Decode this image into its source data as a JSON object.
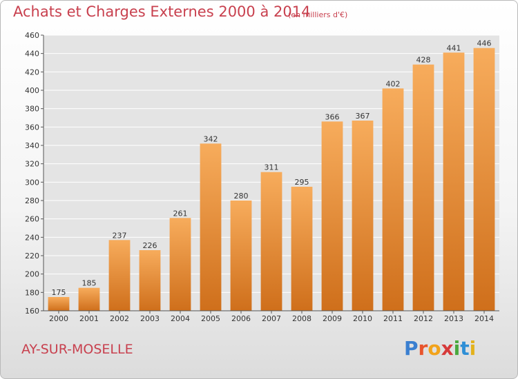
{
  "title": "Achats et Charges Externes 2000 à 2014",
  "subtitle": "(en milliers d'€)",
  "commune": "AY-SUR-MOSELLE",
  "logo": {
    "letters": [
      "P",
      "r",
      "o",
      "x",
      "i",
      "t",
      "i"
    ]
  },
  "colors": {
    "bar_light": "#f7ac5c",
    "bar_dark": "#cf6f1b",
    "grid": "#ffffff",
    "title": "#c8404e",
    "plot_background": "#e4e4e4"
  },
  "chart_data": {
    "type": "bar",
    "title": "Achats et Charges Externes 2000 à 2014",
    "subtitle": "(en milliers d'€)",
    "xlabel": "",
    "ylabel": "",
    "categories": [
      "2000",
      "2001",
      "2002",
      "2003",
      "2004",
      "2005",
      "2006",
      "2007",
      "2008",
      "2009",
      "2010",
      "2011",
      "2012",
      "2013",
      "2014"
    ],
    "values": [
      175,
      185,
      237,
      226,
      261,
      342,
      280,
      311,
      295,
      366,
      367,
      402,
      428,
      441,
      446
    ],
    "data_labels": [
      "175",
      "185",
      "237",
      "226",
      "261",
      "342",
      "280",
      "311",
      "295",
      "366",
      "367",
      "402",
      "428",
      "441",
      "446"
    ],
    "ylim": [
      160,
      460
    ],
    "yticks": [
      160,
      180,
      200,
      220,
      240,
      260,
      280,
      300,
      320,
      340,
      360,
      380,
      400,
      420,
      440,
      460
    ],
    "ytick_labels": [
      "160",
      "180",
      "200",
      "220",
      "240",
      "260",
      "280",
      "300",
      "320",
      "340",
      "360",
      "380",
      "400",
      "420",
      "440",
      "460"
    ],
    "grid": true,
    "legend": "none"
  }
}
